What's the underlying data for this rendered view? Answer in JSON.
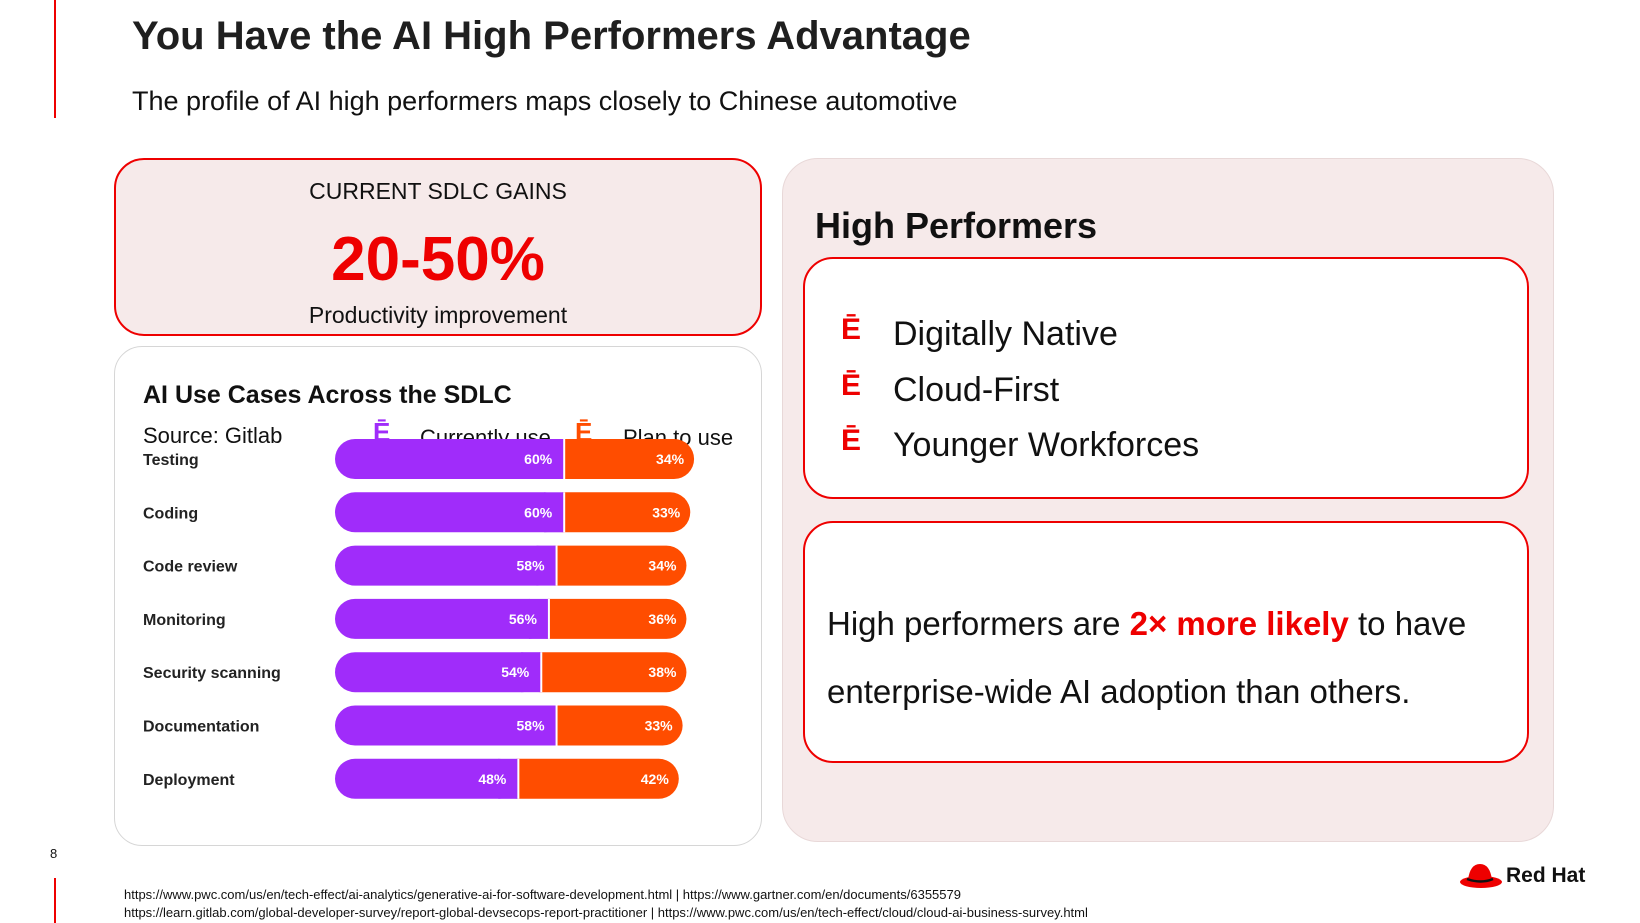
{
  "slide": {
    "title": "You Have the AI High Performers Advantage",
    "subtitle": "The profile of AI high performers maps closely to Chinese automotive",
    "page_number": "8"
  },
  "gains": {
    "label": "CURRENT SDLC GAINS",
    "value": "20-50%",
    "caption": "Productivity improvement"
  },
  "use_cases": {
    "title": "AI Use Cases Across the SDLC",
    "source": "Source: Gitlab",
    "legend_marker": "Ē",
    "legend_current": "Currently use",
    "legend_plan": "Plan to use"
  },
  "chart_data": {
    "type": "bar",
    "stacked": true,
    "orientation": "horizontal",
    "categories": [
      "Testing",
      "Coding",
      "Code review",
      "Monitoring",
      "Security scanning",
      "Documentation",
      "Deployment"
    ],
    "series": [
      {
        "name": "Currently use",
        "color": "#a02cfa",
        "values": [
          60,
          60,
          58,
          56,
          54,
          58,
          48
        ],
        "labels": [
          "60%",
          "60%",
          "58%",
          "56%",
          "54%",
          "58%",
          "48%"
        ]
      },
      {
        "name": "Plan to use",
        "color": "#ff4d00",
        "values": [
          34,
          33,
          34,
          36,
          38,
          33,
          42
        ],
        "labels": [
          "34%",
          "33%",
          "34%",
          "36%",
          "38%",
          "33%",
          "42%"
        ]
      }
    ]
  },
  "high_performers": {
    "title": "High Performers",
    "bullet": "Ē",
    "items": [
      "Digitally Native",
      "Cloud-First",
      "Younger Workforces"
    ],
    "stat_prefix": "High performers are ",
    "stat_highlight": "2× more likely",
    "stat_suffix": " to have",
    "stat_line2": "enterprise-wide AI adoption than others."
  },
  "references": {
    "line1": "https://www.pwc.com/us/en/tech-effect/ai-analytics/generative-ai-for-software-development.html  |   https://www.gartner.com/en/documents/6355579",
    "line2": "https://learn.gitlab.com/global-developer-survey/report-global-devsecops-report-practitioner |  https://www.pwc.com/us/en/tech-effect/cloud/cloud-ai-business-survey.html"
  },
  "logo": {
    "text": "Red Hat"
  },
  "colors": {
    "accent": "#ee0000",
    "current": "#a02cfa",
    "plan": "#ff4d00",
    "panel": "#f6eaea"
  }
}
